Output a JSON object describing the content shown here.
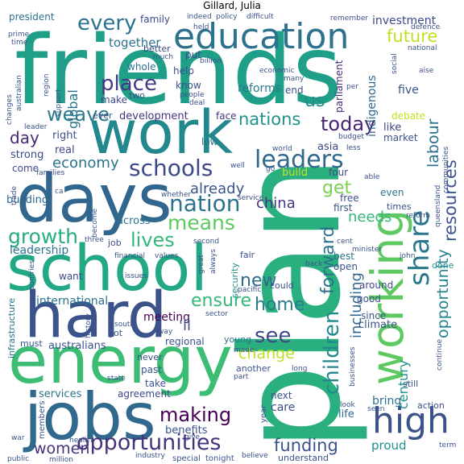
{
  "title": "Gillard, Julia",
  "words": [
    {
      "text": "plan",
      "color": "#2ab07f"
    },
    {
      "text": "friends",
      "color": "#1f9f88"
    },
    {
      "text": "work",
      "color": "#23888e"
    },
    {
      "text": "days",
      "color": "#31668e"
    },
    {
      "text": "school",
      "color": "#22a884"
    },
    {
      "text": "energy",
      "color": "#3dbc74"
    },
    {
      "text": "jobs",
      "color": "#31688e"
    },
    {
      "text": "hard",
      "color": "#3b528b"
    },
    {
      "text": "education",
      "color": "#2c728e"
    },
    {
      "text": "working",
      "color": "#5ec962"
    },
    {
      "text": "share",
      "color": "#2a788e"
    },
    {
      "text": "high",
      "color": "#3b528b"
    },
    {
      "text": "opportunities",
      "color": "#46337e"
    },
    {
      "text": "schools",
      "color": "#3e4989"
    },
    {
      "text": "leaders",
      "color": "#31688e"
    },
    {
      "text": "place",
      "color": "#443983"
    },
    {
      "text": "nation",
      "color": "#2c728e"
    },
    {
      "text": "means",
      "color": "#5ec962"
    },
    {
      "text": "lives",
      "color": "#35b779"
    },
    {
      "text": "every",
      "color": "#2c728e"
    },
    {
      "text": "weave",
      "color": "#287c8e"
    },
    {
      "text": "growth",
      "color": "#27ad81"
    },
    {
      "text": "future",
      "color": "#bddf26"
    },
    {
      "text": "today",
      "color": "#482475"
    },
    {
      "text": "nations",
      "color": "#20928c"
    },
    {
      "text": "children",
      "color": "#23898e"
    },
    {
      "text": "forward",
      "color": "#2c728e"
    },
    {
      "text": "resources",
      "color": "#3b528b"
    },
    {
      "text": "opportunity",
      "color": "#25858e"
    },
    {
      "text": "making",
      "color": "#440154"
    },
    {
      "text": "funding",
      "color": "#3b528b"
    },
    {
      "text": "women",
      "color": "#46337e"
    },
    {
      "text": "ensure",
      "color": "#35b779"
    },
    {
      "text": "change",
      "color": "#bddf26"
    },
    {
      "text": "home",
      "color": "#287c8e"
    },
    {
      "text": "economy",
      "color": "#2c728e"
    },
    {
      "text": "see",
      "color": "#3e4989"
    },
    {
      "text": "new",
      "color": "#31688e"
    },
    {
      "text": "get",
      "color": "#7ad151"
    },
    {
      "text": "china",
      "color": "#46337e"
    },
    {
      "text": "already",
      "color": "#3b528b"
    },
    {
      "text": "us",
      "color": "#228d8d"
    },
    {
      "text": "day",
      "color": "#482878"
    },
    {
      "text": "labour",
      "color": "#2c728e"
    },
    {
      "text": "century",
      "color": "#21918c"
    },
    {
      "text": "including",
      "color": "#31688e"
    },
    {
      "text": "global",
      "color": "#2c728e"
    },
    {
      "text": "needs",
      "color": "#35b779"
    },
    {
      "text": "together",
      "color": "#2c728e"
    },
    {
      "text": "investment",
      "color": "#3e4989"
    },
    {
      "text": "development",
      "color": "#46337e"
    },
    {
      "text": "reforms",
      "color": "#287c8e"
    },
    {
      "text": "indigenous",
      "color": "#31688e"
    },
    {
      "text": "leadership",
      "color": "#2c728e"
    },
    {
      "text": "international",
      "color": "#2c728e"
    },
    {
      "text": "australians",
      "color": "#3b528b"
    },
    {
      "text": "benefits",
      "color": "#3b528b"
    },
    {
      "text": "services",
      "color": "#2c728e"
    },
    {
      "text": "agreement",
      "color": "#3e4989"
    },
    {
      "text": "proud",
      "color": "#21918c"
    },
    {
      "text": "bring",
      "color": "#2c728e"
    },
    {
      "text": "climate",
      "color": "#3b528b"
    },
    {
      "text": "care",
      "color": "#3b528b"
    },
    {
      "text": "life",
      "color": "#31688e"
    },
    {
      "text": "next",
      "color": "#3b528b"
    },
    {
      "text": "young",
      "color": "#2c728e"
    },
    {
      "text": "meeting",
      "color": "#440154"
    },
    {
      "text": "regional",
      "color": "#3b528b"
    },
    {
      "text": "across",
      "color": "#2c728e"
    },
    {
      "text": "infrastructure",
      "color": "#2c728e"
    },
    {
      "text": "building",
      "color": "#31688e"
    },
    {
      "text": "strong",
      "color": "#3e4989"
    },
    {
      "text": "right",
      "color": "#3b528b"
    },
    {
      "text": "real",
      "color": "#3e4989"
    },
    {
      "text": "come",
      "color": "#3e4989"
    },
    {
      "text": "parliament",
      "color": "#482878"
    },
    {
      "text": "president",
      "color": "#2c728e"
    },
    {
      "text": "family",
      "color": "#3e4989"
    },
    {
      "text": "like",
      "color": "#3e4989"
    },
    {
      "text": "asia",
      "color": "#3e4989"
    },
    {
      "text": "market",
      "color": "#3b528b"
    },
    {
      "text": "debate",
      "color": "#c8e020"
    },
    {
      "text": "five",
      "color": "#3b528b"
    },
    {
      "text": "end",
      "color": "#3b528b"
    },
    {
      "text": "make",
      "color": "#3e4989"
    },
    {
      "text": "help",
      "color": "#3b528b"
    },
    {
      "text": "whole",
      "color": "#2c728e"
    },
    {
      "text": "know",
      "color": "#3b528b"
    },
    {
      "text": "face",
      "color": "#46337e"
    },
    {
      "text": "ever",
      "color": "#3b528b"
    },
    {
      "text": "low",
      "color": "#2c728e"
    },
    {
      "text": "put",
      "color": "#3e4989"
    },
    {
      "text": "better",
      "color": "#3e4989"
    },
    {
      "text": "two",
      "color": "#3b528b"
    },
    {
      "text": "build",
      "color": "#c8e020"
    },
    {
      "text": "four",
      "color": "#3e4989"
    },
    {
      "text": "even",
      "color": "#2c728e"
    },
    {
      "text": "times",
      "color": "#3b528b"
    },
    {
      "text": "free",
      "color": "#3b528b"
    },
    {
      "text": "first",
      "color": "#3b528b"
    },
    {
      "text": "best",
      "color": "#2c728e"
    },
    {
      "text": "open",
      "color": "#3b528b"
    },
    {
      "text": "good",
      "color": "#3b528b"
    },
    {
      "text": "since",
      "color": "#3b528b"
    },
    {
      "text": "around",
      "color": "#3e4989"
    },
    {
      "text": "done",
      "color": "#21918c"
    },
    {
      "text": "could",
      "color": "#3b528b"
    },
    {
      "text": "still",
      "color": "#3b528b"
    },
    {
      "text": "fair",
      "color": "#3b528b"
    },
    {
      "text": "security",
      "color": "#21918c"
    },
    {
      "text": "job",
      "color": "#3b528b"
    },
    {
      "text": "want",
      "color": "#3e4989"
    },
    {
      "text": "must",
      "color": "#3b528b"
    },
    {
      "text": "got",
      "color": "#3b528b"
    },
    {
      "text": "past",
      "color": "#3b528b"
    },
    {
      "text": "take",
      "color": "#3b528b"
    },
    {
      "text": "never",
      "color": "#3b528b"
    },
    {
      "text": "another",
      "color": "#3b528b"
    },
    {
      "text": "'ll",
      "color": "#3b528b"
    },
    {
      "text": "action",
      "color": "#3b528b"
    },
    {
      "text": "year",
      "color": "#3b528b"
    },
    {
      "text": "members",
      "color": "#3b528b"
    },
    {
      "text": "understand",
      "color": "#3b528b"
    },
    {
      "text": "special",
      "color": "#3b528b"
    },
    {
      "text": "tonight",
      "color": "#3b528b"
    },
    {
      "text": "million",
      "color": "#3b528b"
    },
    {
      "text": "public",
      "color": "#3b528b"
    },
    {
      "text": "war",
      "color": "#3b528b"
    },
    {
      "text": "health",
      "color": "#3b528b"
    },
    {
      "text": "give",
      "color": "#3b528b"
    },
    {
      "text": "industry",
      "color": "#3b528b"
    },
    {
      "text": "believe",
      "color": "#3b528b"
    },
    {
      "text": "term",
      "color": "#3b528b"
    },
    {
      "text": "seen",
      "color": "#3b528b"
    },
    {
      "text": "look",
      "color": "#3b528b"
    },
    {
      "text": "businesses",
      "color": "#3b528b"
    },
    {
      "text": "continue",
      "color": "#3b528b"
    },
    {
      "text": "state",
      "color": "#3b528b"
    },
    {
      "text": "part",
      "color": "#3b528b"
    },
    {
      "text": "long",
      "color": "#3b528b"
    },
    {
      "text": "made",
      "color": "#3b528b"
    },
    {
      "text": "way",
      "color": "#3b528b"
    },
    {
      "text": "south",
      "color": "#3b528b"
    },
    {
      "text": "history",
      "color": "#3b528b"
    },
    {
      "text": "issues",
      "color": "#3b528b"
    },
    {
      "text": "countries",
      "color": "#3b528b"
    },
    {
      "text": "sector",
      "color": "#3b528b"
    },
    {
      "text": "pacific",
      "color": "#3b528b"
    },
    {
      "text": "cent",
      "color": "#3b528b"
    },
    {
      "text": "minister",
      "color": "#3b528b"
    },
    {
      "text": "john",
      "color": "#3b528b"
    },
    {
      "text": "back",
      "color": "#3b528b"
    },
    {
      "text": "second",
      "color": "#3b528b"
    },
    {
      "text": "values",
      "color": "#3b528b"
    },
    {
      "text": "financial",
      "color": "#3b528b"
    },
    {
      "text": "great",
      "color": "#3b528b"
    },
    {
      "text": "always",
      "color": "#3b528b"
    },
    {
      "text": "three",
      "color": "#3b528b"
    },
    {
      "text": "become",
      "color": "#3b528b"
    },
    {
      "text": "service",
      "color": "#3b528b"
    },
    {
      "text": "whether",
      "color": "#3b528b"
    },
    {
      "text": "trade",
      "color": "#3b528b"
    },
    {
      "text": "ca",
      "color": "#3b528b"
    },
    {
      "text": "families",
      "color": "#3b528b"
    },
    {
      "text": "well",
      "color": "#3b528b"
    },
    {
      "text": "go",
      "color": "#3b528b"
    },
    {
      "text": "world",
      "color": "#3b528b"
    },
    {
      "text": "less",
      "color": "#3b528b"
    },
    {
      "text": "budget",
      "color": "#3b528b"
    },
    {
      "text": "able",
      "color": "#3b528b"
    },
    {
      "text": "queensland",
      "color": "#3b528b"
    },
    {
      "text": "communities",
      "color": "#3b528b"
    },
    {
      "text": "reform",
      "color": "#3b528b"
    },
    {
      "text": "leader",
      "color": "#3b528b"
    },
    {
      "text": "changes",
      "color": "#3b528b"
    },
    {
      "text": "australian",
      "color": "#3b528b"
    },
    {
      "text": "prime",
      "color": "#3b528b"
    },
    {
      "text": "time",
      "color": "#3b528b"
    },
    {
      "text": "region",
      "color": "#3b528b"
    },
    {
      "text": "support",
      "color": "#3b528b"
    },
    {
      "text": "indeed",
      "color": "#3b528b"
    },
    {
      "text": "much",
      "color": "#3b528b"
    },
    {
      "text": "billion",
      "color": "#3b528b"
    },
    {
      "text": "economic",
      "color": "#3b528b"
    },
    {
      "text": "people",
      "color": "#3b528b"
    },
    {
      "text": "deal",
      "color": "#3b528b"
    },
    {
      "text": "many",
      "color": "#3b528b"
    },
    {
      "text": "per",
      "color": "#3b528b"
    },
    {
      "text": "social",
      "color": "#3b528b"
    },
    {
      "text": "aise",
      "color": "#3b528b"
    },
    {
      "text": "national",
      "color": "#3b528b"
    },
    {
      "text": "defence",
      "color": "#3b528b"
    },
    {
      "text": "remember",
      "color": "#3b528b"
    },
    {
      "text": "difficult",
      "color": "#3b528b"
    },
    {
      "text": "policy",
      "color": "#3b528b"
    },
    {
      "text": "held",
      "color": "#3b528b"
    }
  ]
}
